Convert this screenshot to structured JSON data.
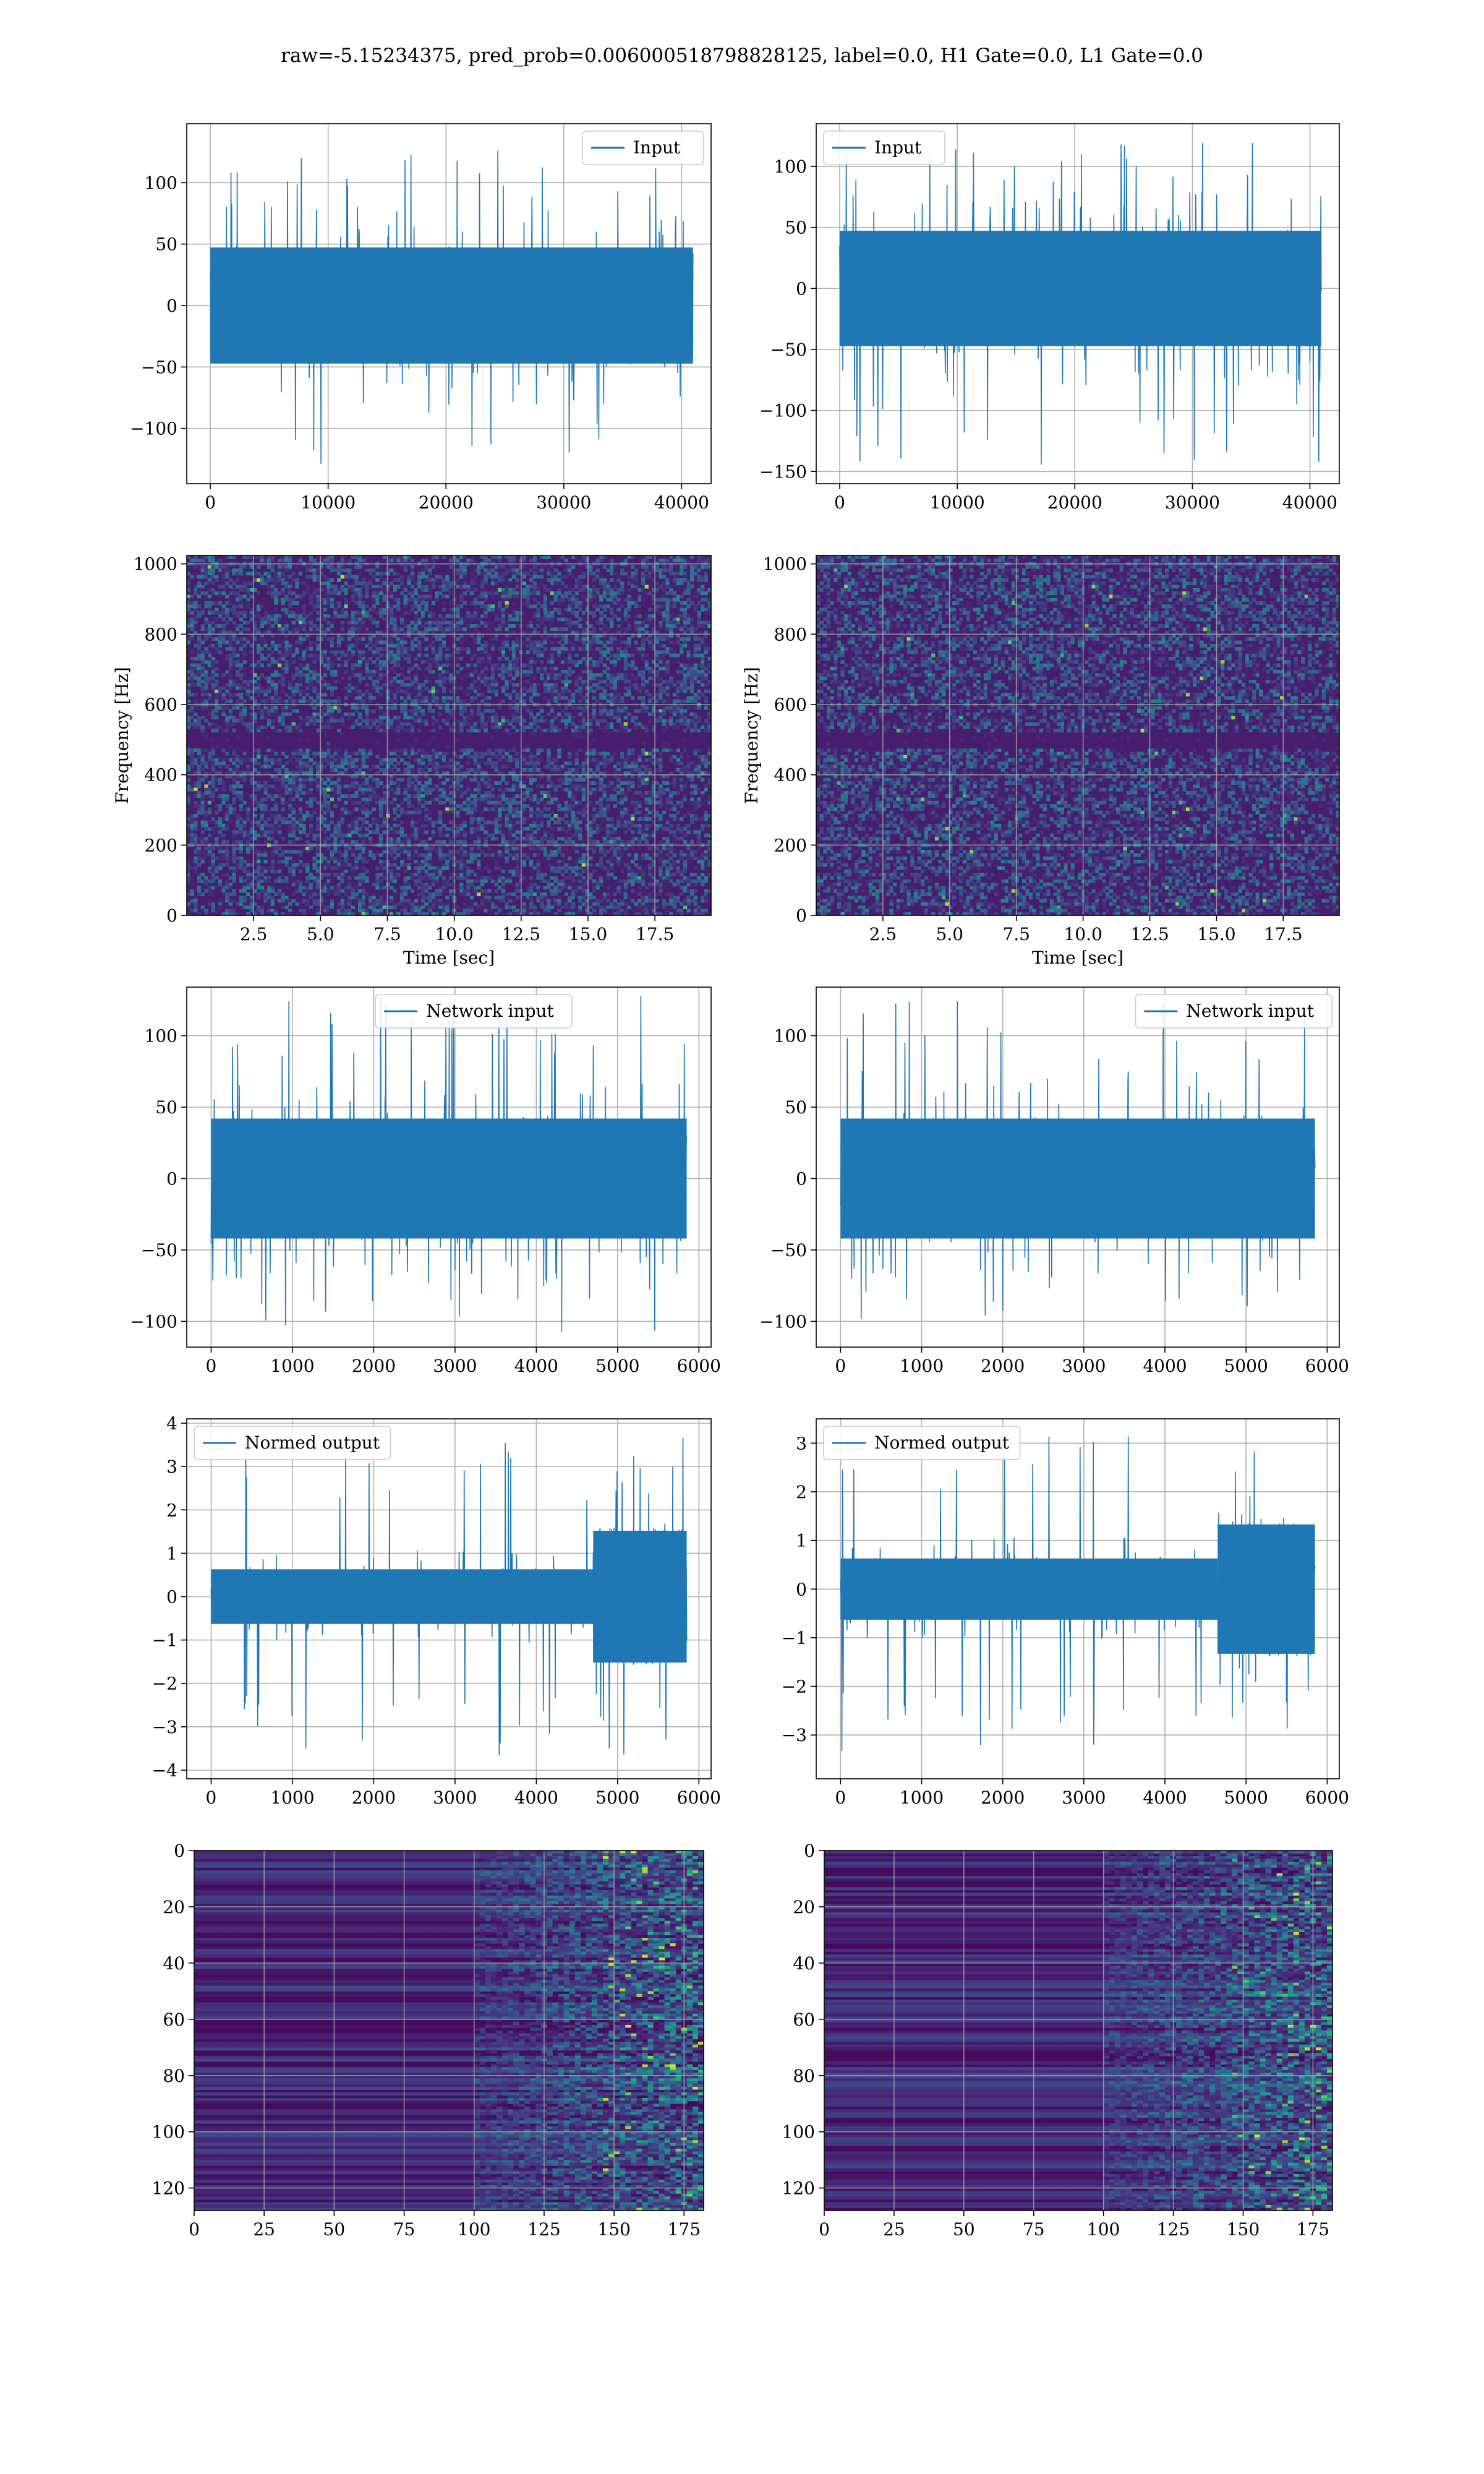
{
  "figure": {
    "title": "raw=-5.15234375, pred_prob=0.006000518798828125, label=0.0, H1 Gate=0.0, L1 Gate=0.0"
  },
  "chart_data": [
    {
      "id": "h1-input",
      "type": "line",
      "series": [
        {
          "name": "Input",
          "color": "#1f77b4"
        }
      ],
      "x_range": [
        0,
        40960
      ],
      "noise": {
        "amplitude_core": 45,
        "peak_extent": [
          -130,
          130
        ]
      },
      "xlim": [
        -2000,
        42500
      ],
      "ylim": [
        -145,
        148
      ],
      "xticks": [
        0,
        10000,
        20000,
        30000,
        40000
      ],
      "xtick_labels": [
        "0",
        "10000",
        "20000",
        "30000",
        "40000"
      ],
      "yticks": [
        -100,
        -50,
        0,
        50,
        100
      ],
      "ytick_labels": [
        "−100",
        "−50",
        "0",
        "50",
        "100"
      ],
      "xlabel": "",
      "ylabel": "",
      "grid": true,
      "legend_loc": "upper right"
    },
    {
      "id": "l1-input",
      "type": "line",
      "series": [
        {
          "name": "Input",
          "color": "#1f77b4"
        }
      ],
      "x_range": [
        0,
        40960
      ],
      "noise": {
        "amplitude_core": 45,
        "peak_extent": [
          -145,
          125
        ]
      },
      "xlim": [
        -2000,
        42500
      ],
      "ylim": [
        -160,
        135
      ],
      "xticks": [
        0,
        10000,
        20000,
        30000,
        40000
      ],
      "xtick_labels": [
        "0",
        "10000",
        "20000",
        "30000",
        "40000"
      ],
      "yticks": [
        -150,
        -100,
        -50,
        0,
        50,
        100
      ],
      "ytick_labels": [
        "−150",
        "−100",
        "−50",
        "0",
        "50",
        "100"
      ],
      "xlabel": "",
      "ylabel": "",
      "grid": true,
      "legend_loc": "upper left"
    },
    {
      "id": "h1-spectrogram",
      "type": "heatmap",
      "colormap": "viridis",
      "xlim": [
        0,
        19.6
      ],
      "ylim": [
        0,
        1024
      ],
      "xticks": [
        2.5,
        5.0,
        7.5,
        10.0,
        12.5,
        15.0,
        17.5
      ],
      "xtick_labels": [
        "2.5",
        "5.0",
        "7.5",
        "10.0",
        "12.5",
        "15.0",
        "17.5"
      ],
      "yticks": [
        0,
        200,
        400,
        600,
        800,
        1000
      ],
      "ytick_labels": [
        "0",
        "200",
        "400",
        "600",
        "800",
        "1000"
      ],
      "xlabel": "Time [sec]",
      "ylabel": "Frequency [Hz]",
      "dark_band_hz": 500,
      "grid": true
    },
    {
      "id": "l1-spectrogram",
      "type": "heatmap",
      "colormap": "viridis",
      "xlim": [
        0,
        19.6
      ],
      "ylim": [
        0,
        1024
      ],
      "xticks": [
        2.5,
        5.0,
        7.5,
        10.0,
        12.5,
        15.0,
        17.5
      ],
      "xtick_labels": [
        "2.5",
        "5.0",
        "7.5",
        "10.0",
        "12.5",
        "15.0",
        "17.5"
      ],
      "yticks": [
        0,
        200,
        400,
        600,
        800,
        1000
      ],
      "ytick_labels": [
        "0",
        "200",
        "400",
        "600",
        "800",
        "1000"
      ],
      "xlabel": "Time [sec]",
      "ylabel": "Frequency [Hz]",
      "dark_band_hz": 500,
      "grid": true
    },
    {
      "id": "h1-network-input",
      "type": "line",
      "series": [
        {
          "name": "Network input",
          "color": "#1f77b4"
        }
      ],
      "x_range": [
        0,
        5850
      ],
      "noise": {
        "amplitude_core": 40,
        "peak_extent": [
          -110,
          128
        ]
      },
      "xlim": [
        -300,
        6150
      ],
      "ylim": [
        -118,
        134
      ],
      "xticks": [
        0,
        1000,
        2000,
        3000,
        4000,
        5000,
        6000
      ],
      "xtick_labels": [
        "0",
        "1000",
        "2000",
        "3000",
        "4000",
        "5000",
        "6000"
      ],
      "yticks": [
        -100,
        -50,
        0,
        50,
        100
      ],
      "ytick_labels": [
        "−100",
        "−50",
        "0",
        "50",
        "100"
      ],
      "xlabel": "",
      "ylabel": "",
      "grid": true,
      "legend_loc": "upper center"
    },
    {
      "id": "l1-network-input",
      "type": "line",
      "series": [
        {
          "name": "Network input",
          "color": "#1f77b4"
        }
      ],
      "x_range": [
        0,
        5850
      ],
      "noise": {
        "amplitude_core": 40,
        "peak_extent": [
          -105,
          124
        ]
      },
      "xlim": [
        -300,
        6150
      ],
      "ylim": [
        -118,
        134
      ],
      "xticks": [
        0,
        1000,
        2000,
        3000,
        4000,
        5000,
        6000
      ],
      "xtick_labels": [
        "0",
        "1000",
        "2000",
        "3000",
        "4000",
        "5000",
        "6000"
      ],
      "yticks": [
        -100,
        -50,
        0,
        50,
        100
      ],
      "ytick_labels": [
        "−100",
        "−50",
        "0",
        "50",
        "100"
      ],
      "xlabel": "",
      "ylabel": "",
      "grid": true,
      "legend_loc": "upper right"
    },
    {
      "id": "h1-normed-output",
      "type": "line",
      "series": [
        {
          "name": "Normed output",
          "color": "#1f77b4"
        }
      ],
      "x_range": [
        0,
        5850
      ],
      "noise": {
        "amplitude_core": 0.6,
        "burst_start": 4700,
        "burst_amplitude": 1.6,
        "peak_extent": [
          -3.8,
          3.7
        ]
      },
      "xlim": [
        -300,
        6150
      ],
      "ylim": [
        -4.2,
        4.1
      ],
      "xticks": [
        0,
        1000,
        2000,
        3000,
        4000,
        5000,
        6000
      ],
      "xtick_labels": [
        "0",
        "1000",
        "2000",
        "3000",
        "4000",
        "5000",
        "6000"
      ],
      "yticks": [
        -4,
        -3,
        -2,
        -1,
        0,
        1,
        2,
        3,
        4
      ],
      "ytick_labels": [
        "−4",
        "−3",
        "−2",
        "−1",
        "0",
        "1",
        "2",
        "3",
        "4"
      ],
      "xlabel": "",
      "ylabel": "",
      "grid": true,
      "legend_loc": "upper left"
    },
    {
      "id": "l1-normed-output",
      "type": "line",
      "series": [
        {
          "name": "Normed output",
          "color": "#1f77b4"
        }
      ],
      "x_range": [
        0,
        5850
      ],
      "noise": {
        "amplitude_core": 0.6,
        "burst_start": 4650,
        "burst_amplitude": 1.4,
        "peak_extent": [
          -3.4,
          3.3
        ]
      },
      "xlim": [
        -300,
        6150
      ],
      "ylim": [
        -3.9,
        3.5
      ],
      "xticks": [
        0,
        1000,
        2000,
        3000,
        4000,
        5000,
        6000
      ],
      "xtick_labels": [
        "0",
        "1000",
        "2000",
        "3000",
        "4000",
        "5000",
        "6000"
      ],
      "yticks": [
        -3,
        -2,
        -1,
        0,
        1,
        2,
        3
      ],
      "ytick_labels": [
        "−3",
        "−2",
        "−1",
        "0",
        "1",
        "2",
        "3"
      ],
      "xlabel": "",
      "ylabel": "",
      "grid": true,
      "legend_loc": "upper left"
    },
    {
      "id": "h1-feature-map",
      "type": "heatmap",
      "colormap": "viridis",
      "xlim": [
        0,
        182
      ],
      "ylim": [
        128,
        0
      ],
      "xticks": [
        0,
        25,
        50,
        75,
        100,
        125,
        150,
        175
      ],
      "xtick_labels": [
        "0",
        "25",
        "50",
        "75",
        "100",
        "125",
        "150",
        "175"
      ],
      "yticks": [
        0,
        20,
        40,
        60,
        80,
        100,
        120
      ],
      "ytick_labels": [
        "0",
        "20",
        "40",
        "60",
        "80",
        "100",
        "120"
      ],
      "xlabel": "",
      "ylabel": "",
      "activity_onset_x": 100,
      "grid": true
    },
    {
      "id": "l1-feature-map",
      "type": "heatmap",
      "colormap": "viridis",
      "xlim": [
        0,
        182
      ],
      "ylim": [
        128,
        0
      ],
      "xticks": [
        0,
        25,
        50,
        75,
        100,
        125,
        150,
        175
      ],
      "xtick_labels": [
        "0",
        "25",
        "50",
        "75",
        "100",
        "125",
        "150",
        "175"
      ],
      "yticks": [
        0,
        20,
        40,
        60,
        80,
        100,
        120
      ],
      "ytick_labels": [
        "0",
        "20",
        "40",
        "60",
        "80",
        "100",
        "120"
      ],
      "xlabel": "",
      "ylabel": "",
      "activity_onset_x": 100,
      "grid": true
    }
  ]
}
